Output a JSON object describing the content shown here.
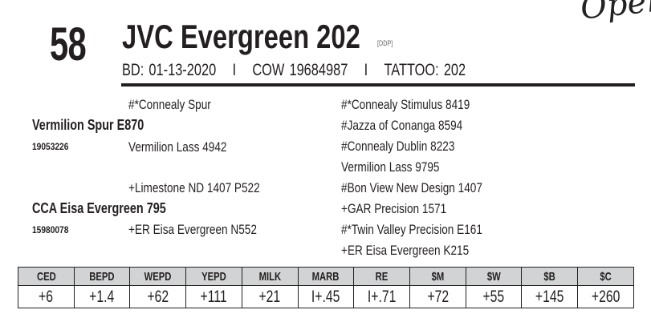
{
  "lot_number": "58",
  "animal_name": "JVC Evergreen 202",
  "designation": "[DDP]",
  "handwritten_note": "Open",
  "info": {
    "birth_date": "BD: 01-13-2020",
    "separator": "I",
    "registration": "COW 19684987",
    "tattoo": "TATTOO: 202"
  },
  "pedigree": {
    "sire": {
      "name": "Vermilion Spur E870",
      "reg": "19053226",
      "sire": "#*Connealy Spur",
      "dam": "Vermilion Lass 4942",
      "ss": "#*Connealy Stimulus 8419",
      "sd": "#Jazza of Conanga 8594",
      "ds": "#Connealy Dublin 8223",
      "dd": "Vermilion Lass 9795"
    },
    "dam": {
      "name": "CCA Eisa Evergreen 795",
      "reg": "15980078",
      "sire": "+Limestone ND 1407 P522",
      "dam": "+ER Eisa Evergreen N552",
      "ss": "#Bon View New Design 1407",
      "sd": "+GAR Precision 1571",
      "ds": "#*Twin Valley Precision E161",
      "dd": "+ER Eisa Evergreen K215"
    }
  },
  "epd": {
    "headers": [
      "CED",
      "BEPD",
      "WEPD",
      "YEPD",
      "MILK",
      "MARB",
      "RE",
      "$M",
      "$W",
      "$B",
      "$C"
    ],
    "values": [
      "+6",
      "+1.4",
      "+62",
      "+111",
      "+21",
      "I+.45",
      "I+.71",
      "+72",
      "+55",
      "+145",
      "+260"
    ]
  }
}
